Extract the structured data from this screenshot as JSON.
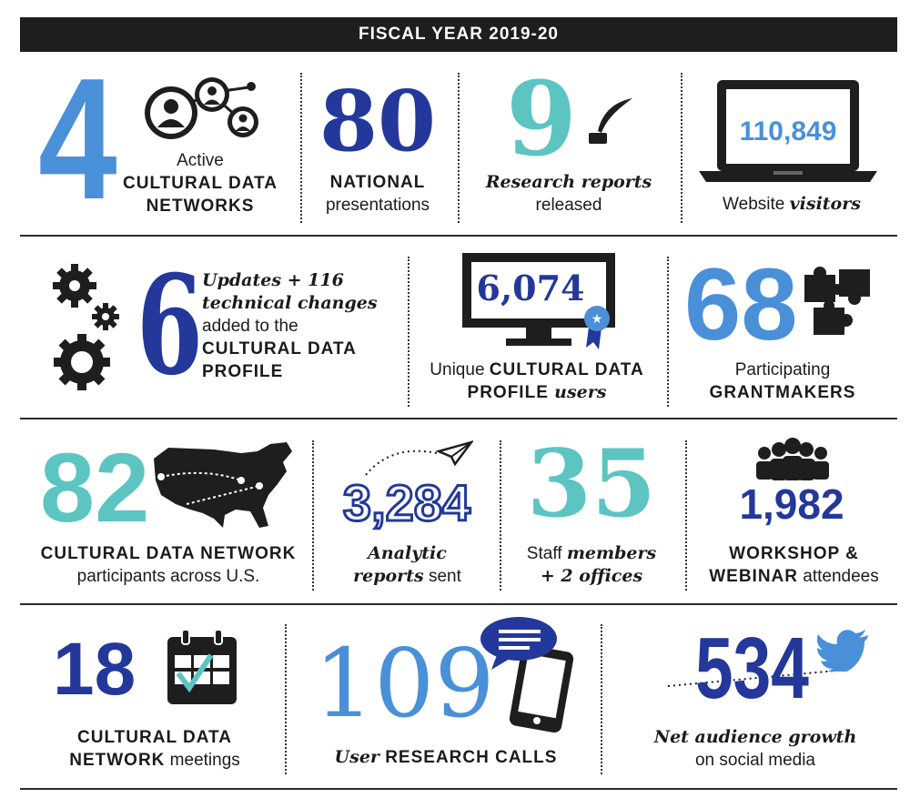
{
  "header": {
    "title": "FISCAL YEAR 2019-20"
  },
  "colors": {
    "navy": "#23389a",
    "sky": "#4a90d9",
    "teal": "#5cc5c2",
    "dark": "#1e1e1e"
  },
  "row1": {
    "networks": {
      "number": "4",
      "line1": "Active",
      "line2": "CULTURAL DATA",
      "line3": "NETWORKS",
      "icon": "people-network-icon"
    },
    "presentations": {
      "number": "80",
      "line1": "NATIONAL",
      "line2": "presentations"
    },
    "reports": {
      "number": "9",
      "line1": "Research reports",
      "line2": "released",
      "icon": "quill-pen-icon"
    },
    "visitors": {
      "number": "110,849",
      "line1": "Website ",
      "line1_em": "visitors",
      "icon": "laptop-icon"
    }
  },
  "row2": {
    "updates": {
      "number": "6",
      "line1": "Updates + 116",
      "line2": "technical changes",
      "line3": "added to the",
      "line4": "CULTURAL DATA",
      "line5": "PROFILE",
      "icon": "gears-icon"
    },
    "users": {
      "number": "6,074",
      "line1": "Unique ",
      "line1_caps": "CULTURAL DATA",
      "line2_caps": "PROFILE ",
      "line2_em": "users",
      "icon": "monitor-ribbon-icon"
    },
    "grantmakers": {
      "number": "68",
      "line1": "Participating",
      "line2": "GRANTMAKERS",
      "icon": "puzzle-icon"
    }
  },
  "row3": {
    "participants": {
      "number": "82",
      "line1": "CULTURAL DATA NETWORK",
      "line2": "participants across U.S.",
      "icon": "us-map-icon"
    },
    "analytic": {
      "number": "3,284",
      "line1": "Analytic",
      "line2_em": "reports",
      "line2": " sent",
      "icon": "paper-plane-icon"
    },
    "staff": {
      "number": "35",
      "line1": "Staff ",
      "line1_em": "members",
      "line2": "+ 2 offices"
    },
    "workshop": {
      "number": "1,982",
      "line1": "WORKSHOP &",
      "line2_caps": "WEBINAR",
      "line2": " attendees",
      "icon": "group-people-icon"
    }
  },
  "row4": {
    "meetings": {
      "number": "18",
      "line1": "CULTURAL DATA",
      "line2_caps": "NETWORK",
      "line2": " meetings",
      "icon": "calendar-check-icon"
    },
    "calls": {
      "number": "109",
      "line1_em": "User",
      "line1_caps": " RESEARCH CALLS",
      "icon": "phone-chat-icon"
    },
    "social": {
      "number": "534",
      "line1": "Net audience growth",
      "line2": "on social media",
      "icon": "twitter-bird-icon"
    }
  }
}
